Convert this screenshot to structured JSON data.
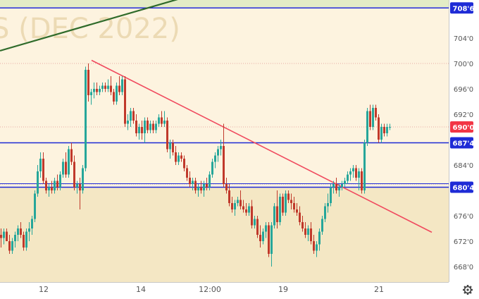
{
  "chart_data": {
    "type": "candlestick",
    "watermark": "S (DEC 2022)",
    "y_axis": {
      "ticks": [
        {
          "value": 704.0,
          "label": "704'0"
        },
        {
          "value": 700.0,
          "label": "700'0"
        },
        {
          "value": 696.0,
          "label": "696'0"
        },
        {
          "value": 692.0,
          "label": "692'0"
        },
        {
          "value": 684.0,
          "label": "684'0"
        },
        {
          "value": 676.0,
          "label": "676'0"
        },
        {
          "value": 672.0,
          "label": "672'0"
        },
        {
          "value": 668.0,
          "label": "668'0"
        }
      ],
      "ylim": [
        666.0,
        710.0
      ]
    },
    "x_axis": {
      "ticks": [
        {
          "x": 62,
          "label": "12"
        },
        {
          "x": 200,
          "label": "14"
        },
        {
          "x": 298,
          "label": "12:00"
        },
        {
          "x": 402,
          "label": "19"
        },
        {
          "x": 538,
          "label": "21"
        }
      ]
    },
    "levels": [
      {
        "value": 708.75,
        "label": "708'6",
        "color": "#1e2bd6"
      },
      {
        "value": 687.5,
        "label": "687'4",
        "color": "#1e2bd6"
      },
      {
        "value": 680.5,
        "label": "680'4",
        "color": "#1e2bd6"
      }
    ],
    "last_price": {
      "value": 690.0,
      "label": "690'0",
      "color": "#f23645"
    },
    "dotted_levels": [
      700.0,
      690.0,
      681.0
    ],
    "trendlines": [
      {
        "name": "resistance-trendline",
        "color": "#f04a5e",
        "from": [
          130,
          700.5
        ],
        "to": [
          613,
          673.4
        ]
      },
      {
        "name": "long-trendline",
        "color": "#2f6b2a",
        "from": [
          0,
          702.0
        ],
        "to": [
          255,
          710.2
        ]
      }
    ],
    "colors": {
      "up": "#26a69a",
      "down": "#c0392b",
      "zone": "#f4e7c4",
      "band": "#e3ecc6"
    },
    "candles": [
      [
        0,
        673,
        674,
        671,
        672.5
      ],
      [
        4,
        672.5,
        674,
        671.5,
        673.5
      ],
      [
        8,
        673.5,
        674,
        672,
        672
      ],
      [
        12,
        672,
        673,
        670,
        670.5
      ],
      [
        16,
        670.5,
        672.5,
        670,
        672
      ],
      [
        20,
        672,
        673.5,
        671,
        673
      ],
      [
        24,
        673,
        674.5,
        672,
        674
      ],
      [
        28,
        674,
        675,
        672.5,
        673
      ],
      [
        32,
        673,
        673.5,
        670.5,
        671
      ],
      [
        36,
        671,
        674,
        670.5,
        673.5
      ],
      [
        40,
        673.5,
        675,
        672,
        674
      ],
      [
        44,
        674,
        676,
        673,
        675.5
      ],
      [
        48,
        675.5,
        680,
        675,
        679.5
      ],
      [
        52,
        679.5,
        684,
        679,
        683
      ],
      [
        56,
        683,
        686,
        682,
        685
      ],
      [
        60,
        685,
        686,
        681,
        681.5
      ],
      [
        64,
        681.5,
        682,
        679.5,
        680
      ],
      [
        68,
        680,
        681,
        679,
        680.5
      ],
      [
        72,
        680.5,
        681.5,
        679.5,
        680
      ],
      [
        76,
        680,
        682,
        679.5,
        681.5
      ],
      [
        80,
        681.5,
        682.5,
        680,
        680.5
      ],
      [
        84,
        680.5,
        683,
        680,
        682.5
      ],
      [
        88,
        682.5,
        685,
        682,
        684.5
      ],
      [
        92,
        684.5,
        686,
        682,
        682.5
      ],
      [
        96,
        682.5,
        687,
        682,
        686.5
      ],
      [
        100,
        686.5,
        687.5,
        684,
        684.5
      ],
      [
        104,
        684.5,
        685.5,
        680,
        680.5
      ],
      [
        108,
        680.5,
        681.5,
        679.5,
        681
      ],
      [
        112,
        681,
        682,
        677,
        680
      ],
      [
        116,
        680,
        684,
        679.5,
        683.5
      ],
      [
        120,
        683.5,
        699.5,
        683,
        699
      ],
      [
        124,
        699,
        700,
        694,
        695
      ],
      [
        128,
        695,
        696,
        693.5,
        695.5
      ],
      [
        132,
        695.5,
        697,
        694.5,
        696
      ],
      [
        136,
        696,
        697,
        695,
        695.5
      ],
      [
        140,
        695.5,
        696.5,
        695,
        696
      ],
      [
        144,
        696,
        697,
        695.5,
        696.5
      ],
      [
        148,
        696.5,
        697,
        695.5,
        696
      ],
      [
        152,
        696,
        697.5,
        695.5,
        696.5
      ],
      [
        156,
        696.5,
        698,
        695,
        695.5
      ],
      [
        160,
        695.5,
        696,
        693.5,
        694
      ],
      [
        164,
        694,
        697,
        693.5,
        696.5
      ],
      [
        168,
        696.5,
        698,
        695,
        695.5
      ],
      [
        172,
        695.5,
        698,
        695,
        697.5
      ],
      [
        176,
        697.5,
        698,
        690,
        690.5
      ],
      [
        180,
        690.5,
        692,
        689.5,
        691
      ],
      [
        184,
        691,
        693,
        690,
        692.5
      ],
      [
        188,
        692.5,
        693,
        690.5,
        691
      ],
      [
        192,
        691,
        692,
        688.5,
        689
      ],
      [
        196,
        689,
        690.5,
        688,
        690
      ],
      [
        200,
        690,
        691,
        688,
        689
      ],
      [
        204,
        689,
        691.5,
        687.5,
        691
      ],
      [
        208,
        691,
        691.5,
        689,
        689.5
      ],
      [
        212,
        689.5,
        691,
        689,
        690.5
      ],
      [
        216,
        690.5,
        691,
        689,
        689.5
      ],
      [
        220,
        689.5,
        691,
        689,
        690.5
      ],
      [
        224,
        690.5,
        692,
        690,
        691.5
      ],
      [
        228,
        691.5,
        692.5,
        690,
        690.5
      ],
      [
        232,
        690.5,
        692.5,
        690,
        691
      ],
      [
        236,
        691,
        691.5,
        686,
        686.5
      ],
      [
        240,
        686.5,
        688,
        685,
        687.5
      ],
      [
        244,
        687.5,
        688,
        685.5,
        686
      ],
      [
        248,
        686,
        687,
        684,
        684.5
      ],
      [
        252,
        684.5,
        686,
        684,
        685.5
      ],
      [
        256,
        685.5,
        686,
        684.5,
        685
      ],
      [
        260,
        685,
        685.5,
        683,
        683.5
      ],
      [
        264,
        683.5,
        684,
        681.5,
        682
      ],
      [
        268,
        682,
        683,
        680.5,
        681
      ],
      [
        272,
        681,
        682,
        680,
        681.5
      ],
      [
        276,
        681.5,
        682,
        679.5,
        680
      ],
      [
        280,
        680,
        681,
        679,
        680.5
      ],
      [
        284,
        680.5,
        681.5,
        679.5,
        680
      ],
      [
        288,
        680,
        681.5,
        679,
        681
      ],
      [
        292,
        681,
        682,
        680,
        680.5
      ],
      [
        296,
        680.5,
        683,
        680,
        682.5
      ],
      [
        300,
        682.5,
        685,
        682,
        684.5
      ],
      [
        304,
        684.5,
        686,
        683.5,
        685.5
      ],
      [
        308,
        685.5,
        687,
        684.5,
        686.5
      ],
      [
        312,
        686.5,
        688,
        685.5,
        687
      ],
      [
        316,
        687,
        690.5,
        680.5,
        681
      ],
      [
        320,
        681,
        682,
        679.5,
        680
      ],
      [
        324,
        680,
        681,
        677.5,
        678
      ],
      [
        328,
        678,
        679,
        676.5,
        677
      ],
      [
        332,
        677,
        678.5,
        676,
        678
      ],
      [
        336,
        678,
        679,
        677.5,
        678.5
      ],
      [
        340,
        678.5,
        680,
        677,
        677.5
      ],
      [
        344,
        677.5,
        678.5,
        676.5,
        677
      ],
      [
        348,
        677,
        678,
        676,
        676.5
      ],
      [
        352,
        676.5,
        678,
        676,
        677.5
      ],
      [
        356,
        677.5,
        678.5,
        674,
        674.5
      ],
      [
        360,
        674.5,
        676,
        674,
        675.5
      ],
      [
        364,
        675.5,
        676,
        672.5,
        673
      ],
      [
        368,
        673,
        674.5,
        671,
        672
      ],
      [
        372,
        672,
        674,
        671.5,
        673.5
      ],
      [
        376,
        673.5,
        675,
        672.5,
        674.5
      ],
      [
        380,
        674.5,
        675,
        669.5,
        670
      ],
      [
        384,
        670,
        675,
        668,
        674.5
      ],
      [
        388,
        674.5,
        678,
        674,
        677.5
      ],
      [
        392,
        677.5,
        680,
        674,
        675
      ],
      [
        396,
        675,
        679.5,
        674.5,
        679
      ],
      [
        400,
        679,
        679.5,
        676,
        676.5
      ],
      [
        404,
        676.5,
        680,
        676,
        679.5
      ],
      [
        408,
        679.5,
        680,
        678,
        678.5
      ],
      [
        412,
        678.5,
        679.5,
        677,
        678
      ],
      [
        416,
        678,
        679,
        676.5,
        677
      ],
      [
        420,
        677,
        678,
        676,
        676.5
      ],
      [
        424,
        676.5,
        677.5,
        674.5,
        675
      ],
      [
        428,
        675,
        676,
        673.5,
        674
      ],
      [
        432,
        674,
        675,
        672.5,
        673
      ],
      [
        436,
        673,
        674.5,
        672,
        674
      ],
      [
        440,
        674,
        675,
        671.5,
        672
      ],
      [
        444,
        672,
        673,
        670,
        670.5
      ],
      [
        448,
        670.5,
        672,
        669.5,
        671.5
      ],
      [
        452,
        671.5,
        674,
        670.5,
        673.5
      ],
      [
        456,
        673.5,
        676,
        673,
        675.5
      ],
      [
        460,
        675.5,
        678,
        675,
        677.5
      ],
      [
        464,
        677.5,
        679.5,
        676.5,
        678
      ],
      [
        468,
        678,
        681,
        677.5,
        680.5
      ],
      [
        472,
        680.5,
        681.5,
        679.5,
        681
      ],
      [
        476,
        681,
        682,
        679.5,
        680
      ],
      [
        480,
        680,
        681,
        679,
        680.5
      ],
      [
        484,
        680.5,
        681.5,
        680,
        681
      ],
      [
        488,
        681,
        682,
        680.5,
        681.5
      ],
      [
        492,
        681.5,
        683,
        681,
        682.5
      ],
      [
        496,
        682.5,
        683.5,
        681.5,
        683
      ],
      [
        500,
        683,
        684,
        682,
        683.5
      ],
      [
        504,
        683.5,
        684,
        681.5,
        682
      ],
      [
        508,
        682,
        683.5,
        680,
        683
      ],
      [
        512,
        683,
        683.5,
        679.5,
        680
      ],
      [
        516,
        680,
        688,
        679.5,
        687.5
      ],
      [
        520,
        687.5,
        693,
        687,
        692.5
      ],
      [
        524,
        692.5,
        693.5,
        689.5,
        690
      ],
      [
        528,
        690,
        693.5,
        689.5,
        693
      ],
      [
        532,
        693,
        693.5,
        691,
        691.5
      ],
      [
        536,
        691.5,
        692,
        687.5,
        688
      ],
      [
        540,
        688,
        690.5,
        687.5,
        690
      ],
      [
        544,
        690,
        690.5,
        688.5,
        689
      ],
      [
        548,
        689,
        690.5,
        688.5,
        690
      ],
      [
        552,
        690,
        690.5,
        689.5,
        690
      ]
    ]
  },
  "ui": {
    "settings_icon": "gear-icon"
  }
}
